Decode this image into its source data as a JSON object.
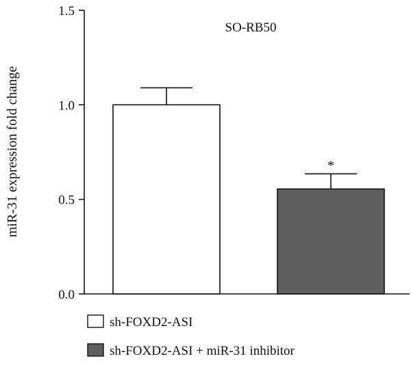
{
  "chart_data": {
    "type": "bar",
    "title": "SO-RB50",
    "xlabel": "",
    "ylabel": "miR-31 expression fold change",
    "ylim": [
      0,
      1.5
    ],
    "yticks": [
      0.0,
      0.5,
      1.0,
      1.5
    ],
    "ytick_labels": [
      "0.0",
      "0.5",
      "1.0",
      "1.5"
    ],
    "grid": false,
    "legend_position": "bottom-left",
    "categories": [
      "sh-FOXD2-ASI",
      "sh-FOXD2-ASI + miR-31 inhibitor"
    ],
    "series": [
      {
        "name": "sh-FOXD2-ASI",
        "value": 1.0,
        "error": 0.09,
        "color": "#ffffff",
        "annotation": ""
      },
      {
        "name": "sh-FOXD2-ASI + miR-31 inhibitor",
        "value": 0.555,
        "error": 0.08,
        "color": "#5f5f5f",
        "annotation": "*"
      }
    ]
  }
}
